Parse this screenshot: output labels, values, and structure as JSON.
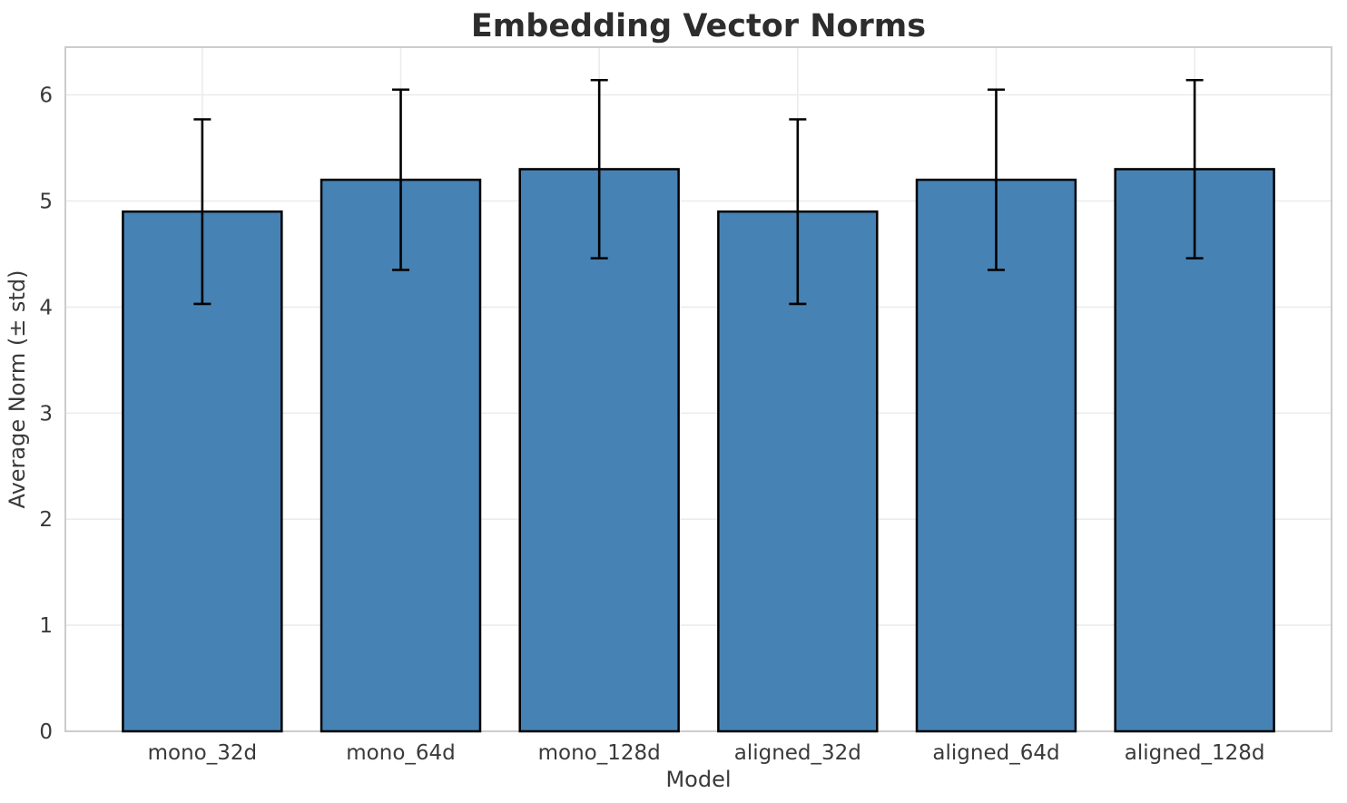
{
  "chart_data": {
    "type": "bar",
    "title": "Embedding Vector Norms",
    "xlabel": "Model",
    "ylabel": "Average Norm (± std)",
    "categories": [
      "mono_32d",
      "mono_64d",
      "mono_128d",
      "aligned_32d",
      "aligned_64d",
      "aligned_128d"
    ],
    "values": [
      4.9,
      5.2,
      5.3,
      4.9,
      5.2,
      5.3
    ],
    "errors": [
      0.87,
      0.85,
      0.84,
      0.87,
      0.85,
      0.84
    ],
    "ytick_labels": [
      "0",
      "1",
      "2",
      "3",
      "4",
      "5",
      "6"
    ],
    "ytick_values": [
      0,
      1,
      2,
      3,
      4,
      5,
      6
    ],
    "ylim": [
      0,
      6.45
    ],
    "bar_width_fraction": 0.8,
    "grid": true,
    "legend": null,
    "colors": {
      "bar_fill": "#4682B4",
      "bar_edge": "#000000",
      "error_bar": "#000000",
      "grid_line": "#ececec",
      "spine": "#cccccc",
      "tick_text": "#3a3a3a",
      "axis_label_text": "#3a3a3a",
      "title_text": "#2d2d2d",
      "background": "#ffffff"
    }
  }
}
